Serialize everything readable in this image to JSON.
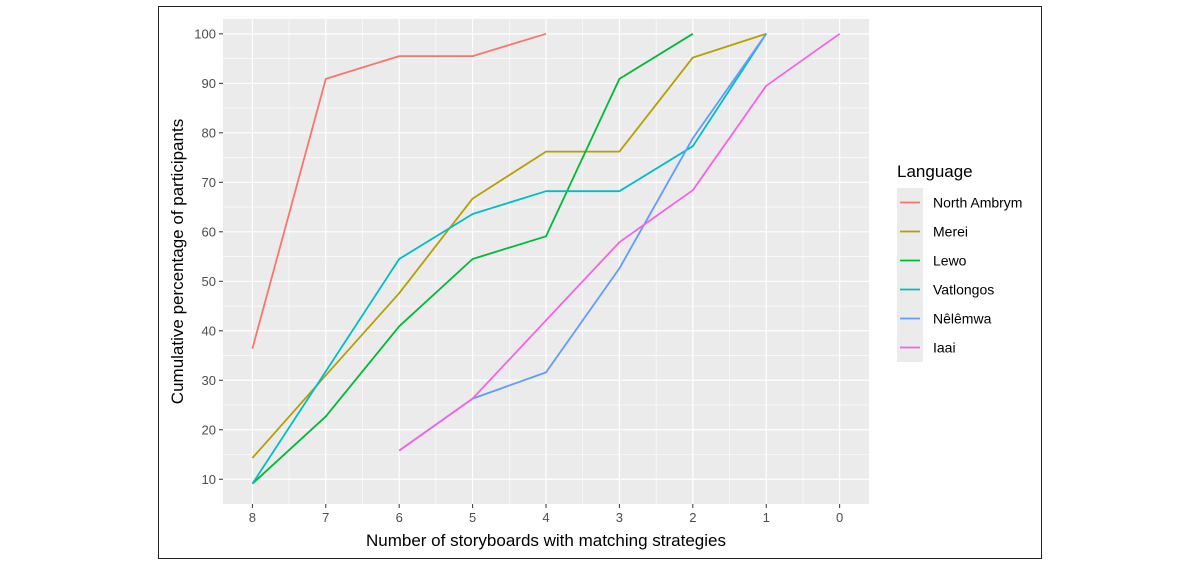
{
  "chart_data": {
    "type": "line",
    "xlabel": "Number of storyboards with matching strategies",
    "ylabel": "Cumulative percentage of participants",
    "x_reversed": true,
    "xlim": [
      8.4,
      -0.4
    ],
    "ylim": [
      5,
      103
    ],
    "x_ticks": [
      "8",
      "7",
      "6",
      "5",
      "4",
      "3",
      "2",
      "1",
      "0"
    ],
    "y_ticks": [
      "10",
      "20",
      "30",
      "40",
      "50",
      "60",
      "70",
      "80",
      "90",
      "100"
    ],
    "grid": true,
    "legend_title": "Language",
    "legend_position": "right",
    "series": [
      {
        "name": "North Ambrym",
        "color": "#F8766D",
        "points": [
          [
            8,
            36.4
          ],
          [
            7,
            90.9
          ],
          [
            6,
            95.5
          ],
          [
            5,
            95.5
          ],
          [
            4,
            100
          ]
        ]
      },
      {
        "name": "Merei",
        "color": "#B79F00",
        "points": [
          [
            8,
            14.3
          ],
          [
            7,
            31.0
          ],
          [
            6,
            47.6
          ],
          [
            5,
            66.7
          ],
          [
            4,
            76.2
          ],
          [
            3,
            76.2
          ],
          [
            2,
            95.2
          ],
          [
            1,
            100
          ]
        ]
      },
      {
        "name": "Lewo",
        "color": "#00BA38",
        "points": [
          [
            8,
            9.1
          ],
          [
            7,
            22.7
          ],
          [
            6,
            40.9
          ],
          [
            5,
            54.5
          ],
          [
            4,
            59.1
          ],
          [
            3,
            90.9
          ],
          [
            2,
            100
          ]
        ]
      },
      {
        "name": "Vatlongos",
        "color": "#00BFC4",
        "points": [
          [
            8,
            9.1
          ],
          [
            7,
            31.8
          ],
          [
            6,
            54.5
          ],
          [
            5,
            63.6
          ],
          [
            4,
            68.2
          ],
          [
            3,
            68.2
          ],
          [
            2,
            77.3
          ],
          [
            1,
            100
          ]
        ]
      },
      {
        "name": "Nêlêmwa",
        "color": "#619CFF",
        "points": [
          [
            6,
            15.8
          ],
          [
            5,
            26.3
          ],
          [
            4,
            31.6
          ],
          [
            3,
            52.6
          ],
          [
            2,
            78.9
          ],
          [
            1,
            100
          ]
        ]
      },
      {
        "name": "Iaai",
        "color": "#F564E3",
        "points": [
          [
            6,
            15.8
          ],
          [
            5,
            26.3
          ],
          [
            4,
            42.1
          ],
          [
            3,
            57.9
          ],
          [
            2,
            68.4
          ],
          [
            1,
            89.5
          ],
          [
            0,
            100
          ]
        ]
      }
    ]
  }
}
